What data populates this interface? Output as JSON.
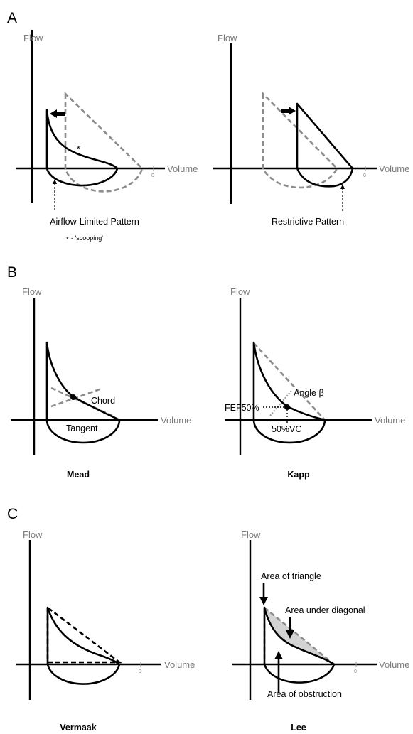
{
  "panels": {
    "A": {
      "letter": "A",
      "left": {
        "flow": "Flow",
        "volume": "Volume",
        "zero": "0",
        "asterisk": "*",
        "caption": "Airflow-Limited Pattern",
        "note_star": "*",
        "note": "- 'scooping'"
      },
      "right": {
        "flow": "Flow",
        "volume": "Volume",
        "zero": "0",
        "caption": "Restrictive Pattern"
      }
    },
    "B": {
      "letter": "B",
      "left": {
        "flow": "Flow",
        "volume": "Volume",
        "chord": "Chord",
        "tangent": "Tangent",
        "caption": "Mead"
      },
      "right": {
        "flow": "Flow",
        "volume": "Volume",
        "angle": "Angle β",
        "fef": "FEF50%",
        "vc": "50%VC",
        "caption": "Kapp"
      }
    },
    "C": {
      "letter": "C",
      "left": {
        "flow": "Flow",
        "volume": "Volume",
        "zero": "0",
        "caption": "Vermaak"
      },
      "right": {
        "flow": "Flow",
        "volume": "Volume",
        "zero": "0",
        "triangle": "Area of triangle",
        "diagonal": "Area under diagonal",
        "obstruction": "Area of obstruction",
        "caption": "Lee"
      }
    }
  }
}
